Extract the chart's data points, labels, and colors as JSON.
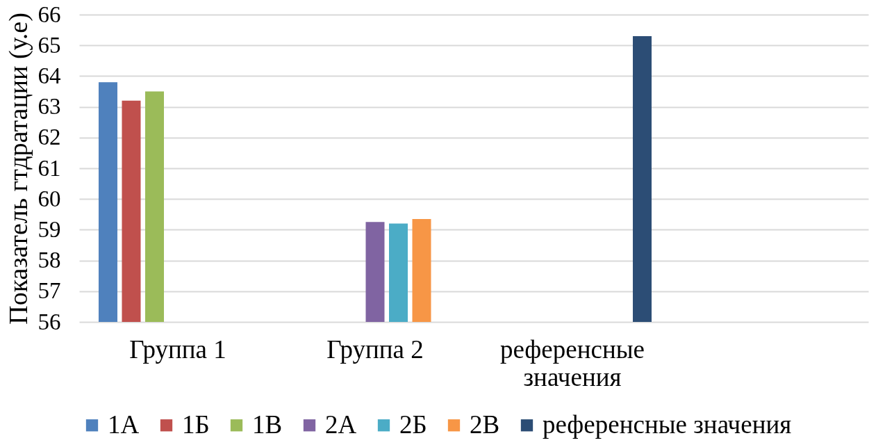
{
  "chart_data": {
    "type": "bar",
    "ylabel": "Показатель гтдратации (у.е)",
    "categories": [
      "Группа 1",
      "Группа 2",
      "референсные значения",
      null
    ],
    "series": [
      {
        "name": "1А",
        "color": "#4f81bd",
        "values": [
          63.8,
          null,
          null,
          null
        ]
      },
      {
        "name": "1Б",
        "color": "#c0504d",
        "values": [
          63.2,
          null,
          null,
          null
        ]
      },
      {
        "name": "1В",
        "color": "#9bbb59",
        "values": [
          63.5,
          null,
          null,
          null
        ]
      },
      {
        "name": "2А",
        "color": "#8064a2",
        "values": [
          null,
          59.25,
          null,
          null
        ]
      },
      {
        "name": "2Б",
        "color": "#4bacc6",
        "values": [
          null,
          59.2,
          null,
          null
        ]
      },
      {
        "name": "2В",
        "color": "#f79646",
        "values": [
          null,
          59.35,
          null,
          null
        ]
      },
      {
        "name": "референсные значения",
        "color": "#2c4d75",
        "values": [
          null,
          null,
          65.3,
          null
        ]
      }
    ],
    "ylim": [
      56,
      66
    ],
    "yticks": [
      56,
      57,
      58,
      59,
      60,
      61,
      62,
      63,
      64,
      65,
      66
    ],
    "grid": "y",
    "legend": "bottom"
  }
}
